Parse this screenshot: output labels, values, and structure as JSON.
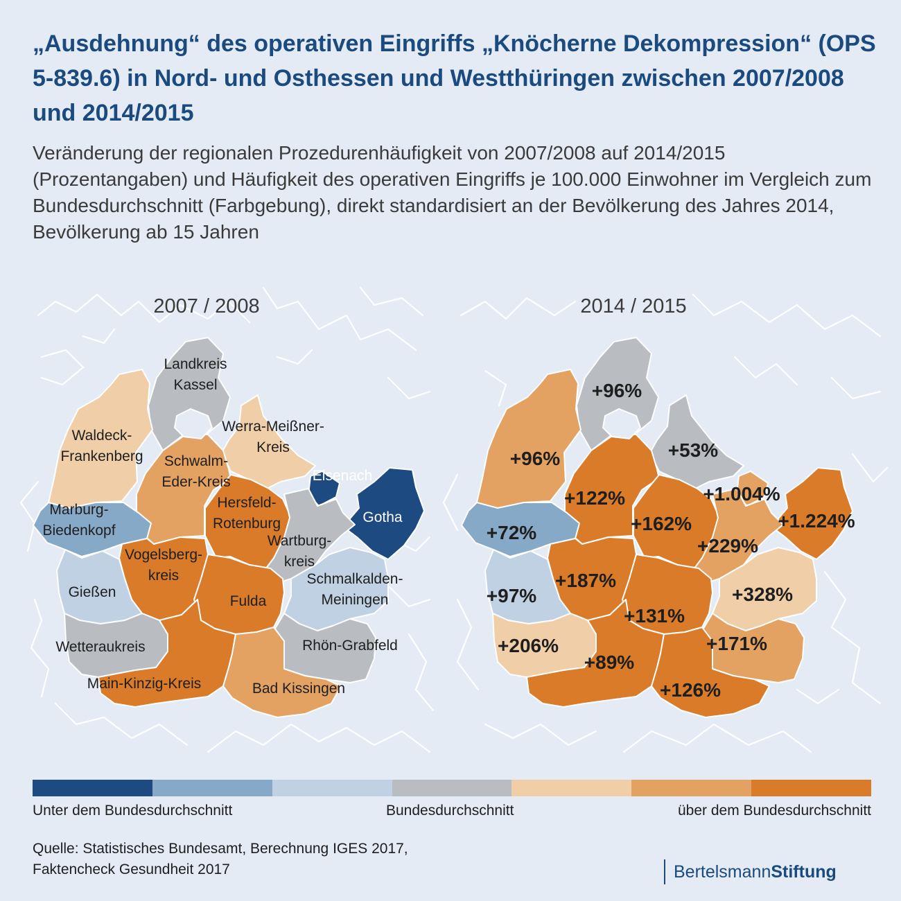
{
  "title": "„Ausdehnung“ des operativen Eingriffs „Knöcherne Dekompression“ (OPS 5-839.6) in Nord- und Osthessen und Westthüringen zwischen 2007/2008 und 2014/2015",
  "subtitle": "Veränderung der regionalen Prozedurenhäufigkeit von 2007/2008 auf 2014/2015 (Prozentangaben) und Häufigkeit des operativen Eingriffs je 100.000 Einwohner im Vergleich zum Bundesdurchschnitt (Farbgebung), direkt standardisiert an der Bevölkerung des Jahres 2014, Bevölkerung ab 15 Jahren",
  "colors": {
    "background": "#e4ebf4",
    "title": "#1a4a7e",
    "scale": [
      "#1d4a80",
      "#86a9c8",
      "#bfd1e2",
      "#b9bdc2",
      "#f0cfa8",
      "#e3a162",
      "#d97b28"
    ]
  },
  "maps": {
    "left_title": "2007 / 2008",
    "right_title": "2014 / 2015"
  },
  "regions": [
    {
      "id": "landkreis-kassel",
      "name": "Landkreis Kassel",
      "lines": [
        "Landkreis",
        "Kassel"
      ],
      "class_2007": 3,
      "class_2015": 3,
      "change": "+96%"
    },
    {
      "id": "waldeck-frankenberg",
      "name": "Waldeck-Frankenberg",
      "lines": [
        "Waldeck-",
        "Frankenberg"
      ],
      "class_2007": 4,
      "class_2015": 5,
      "change": "+96%"
    },
    {
      "id": "werra-meissner-kreis",
      "name": "Werra-Meißner-Kreis",
      "lines": [
        "Werra-Meißner-",
        "Kreis"
      ],
      "class_2007": 4,
      "class_2015": 3,
      "change": "+53%"
    },
    {
      "id": "schwalm-eder-kreis",
      "name": "Schwalm-Eder-Kreis",
      "lines": [
        "Schwalm-",
        "Eder-Kreis"
      ],
      "class_2007": 5,
      "class_2015": 6,
      "change": "+122%"
    },
    {
      "id": "eisenach",
      "name": "Eisenach",
      "lines": [
        "Eisenach"
      ],
      "class_2007": 0,
      "class_2015": 5,
      "change": "+1.004%"
    },
    {
      "id": "gotha",
      "name": "Gotha",
      "lines": [
        "Gotha"
      ],
      "class_2007": 0,
      "class_2015": 6,
      "change": "+1.224%"
    },
    {
      "id": "hersfeld-rotenburg",
      "name": "Hersfeld-Rotenburg",
      "lines": [
        "Hersfeld-",
        "Rotenburg"
      ],
      "class_2007": 6,
      "class_2015": 6,
      "change": "+162%"
    },
    {
      "id": "wartburgkreis",
      "name": "Wartburgkreis",
      "lines": [
        "Wartburg-",
        "kreis"
      ],
      "class_2007": 3,
      "class_2015": 5,
      "change": "+229%"
    },
    {
      "id": "marburg-biedenkopf",
      "name": "Marburg-Biedenkopf",
      "lines": [
        "Marburg-",
        "Biedenkopf"
      ],
      "class_2007": 1,
      "class_2015": 1,
      "change": "+72%"
    },
    {
      "id": "vogelsbergkreis",
      "name": "Vogelsbergkreis",
      "lines": [
        "Vogelsberg-",
        "kreis"
      ],
      "class_2007": 6,
      "class_2015": 6,
      "change": "+187%"
    },
    {
      "id": "schmalkalden-meiningen",
      "name": "Schmalkalden-Meiningen",
      "lines": [
        "Schmalkalden-",
        "Meiningen"
      ],
      "class_2007": 2,
      "class_2015": 4,
      "change": "+328%"
    },
    {
      "id": "giessen",
      "name": "Gießen",
      "lines": [
        "Gießen"
      ],
      "class_2007": 2,
      "class_2015": 2,
      "change": "+97%"
    },
    {
      "id": "fulda",
      "name": "Fulda",
      "lines": [
        "Fulda"
      ],
      "class_2007": 6,
      "class_2015": 6,
      "change": "+131%"
    },
    {
      "id": "wetteraukreis",
      "name": "Wetteraukreis",
      "lines": [
        "Wetteraukreis"
      ],
      "class_2007": 3,
      "class_2015": 4,
      "change": "+206%"
    },
    {
      "id": "rhoen-grabfeld",
      "name": "Rhön-Grabfeld",
      "lines": [
        "Rhön-Grabfeld"
      ],
      "class_2007": 3,
      "class_2015": 5,
      "change": "+171%"
    },
    {
      "id": "main-kinzig-kreis",
      "name": "Main-Kinzig-Kreis",
      "lines": [
        "Main-Kinzig-Kreis"
      ],
      "class_2007": 6,
      "class_2015": 6,
      "change": "+89%"
    },
    {
      "id": "bad-kissingen",
      "name": "Bad Kissingen",
      "lines": [
        "Bad Kissingen"
      ],
      "class_2007": 5,
      "class_2015": 6,
      "change": "+126%"
    }
  ],
  "legend": {
    "low": "Unter dem Bundesdurchschnitt",
    "mid": "Bundesdurchschnitt",
    "high": "über dem Bundesdurchschnitt"
  },
  "source": {
    "line1": "Quelle: Statistisches Bundesamt, Berechnung IGES 2017,",
    "line2": "Faktencheck Gesundheit 2017"
  },
  "logo": {
    "part1": "Bertelsmann",
    "part2": "Stiftung"
  }
}
